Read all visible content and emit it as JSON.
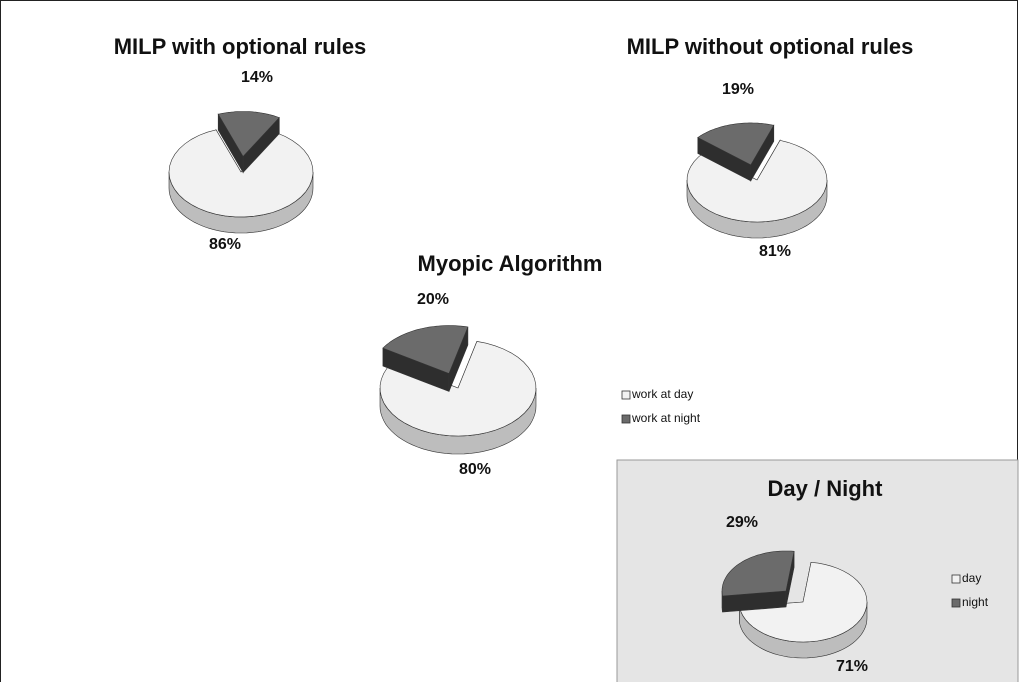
{
  "chart_data": [
    {
      "type": "pie",
      "title": "MILP with optional rules",
      "values": [
        86,
        14
      ],
      "value_labels": [
        "86%",
        "14%"
      ],
      "colors": [
        "#f2f2f2",
        "#6b6b6b"
      ]
    },
    {
      "type": "pie",
      "title": "MILP without optional rules",
      "values": [
        81,
        19
      ],
      "value_labels": [
        "81%",
        "19%"
      ],
      "colors": [
        "#f2f2f2",
        "#6b6b6b"
      ]
    },
    {
      "type": "pie",
      "title": "Myopic Algorithm",
      "categories": [
        "work at day",
        "work at night"
      ],
      "values": [
        80,
        20
      ],
      "value_labels": [
        "80%",
        "20%"
      ],
      "colors": [
        "#f2f2f2",
        "#6b6b6b"
      ]
    },
    {
      "type": "pie",
      "title": "Day / Night",
      "categories": [
        "day",
        "night"
      ],
      "values": [
        71,
        29
      ],
      "value_labels": [
        "71%",
        "29%"
      ],
      "colors": [
        "#f2f2f2",
        "#6b6b6b"
      ]
    }
  ]
}
